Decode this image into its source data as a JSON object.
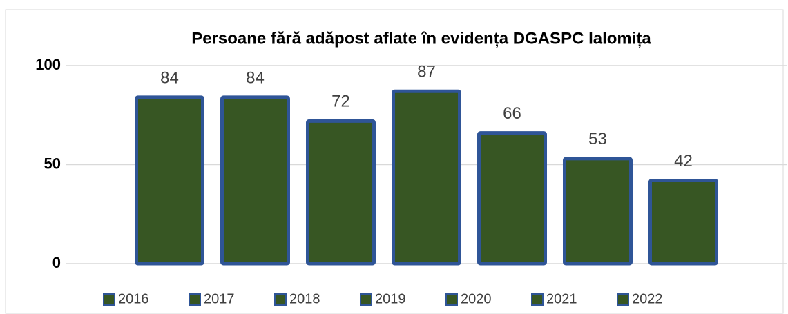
{
  "chart_data": {
    "type": "bar",
    "title": "Persoane fără adăpost aflate în evidența DGASPC Ialomița",
    "categories": [
      null
    ],
    "series": [
      {
        "name": "2016",
        "color": "#375623",
        "edge_color": "#2f5597",
        "values": [
          84
        ]
      },
      {
        "name": "2017",
        "color": "#375623",
        "edge_color": "#2f5597",
        "values": [
          84
        ]
      },
      {
        "name": "2018",
        "color": "#375623",
        "edge_color": "#2f5597",
        "values": [
          72
        ]
      },
      {
        "name": "2019",
        "color": "#375623",
        "edge_color": "#2f5597",
        "values": [
          87
        ]
      },
      {
        "name": "2020",
        "color": "#375623",
        "edge_color": "#2f5597",
        "values": [
          66
        ]
      },
      {
        "name": "2021",
        "color": "#375623",
        "edge_color": "#2f5597",
        "values": [
          53
        ]
      },
      {
        "name": "2022",
        "color": "#375623",
        "edge_color": "#2f5597",
        "values": [
          42
        ]
      }
    ],
    "ylim": [
      0,
      100
    ],
    "yticks": [
      0,
      50,
      100
    ],
    "grid": true,
    "legend": "bottom"
  }
}
